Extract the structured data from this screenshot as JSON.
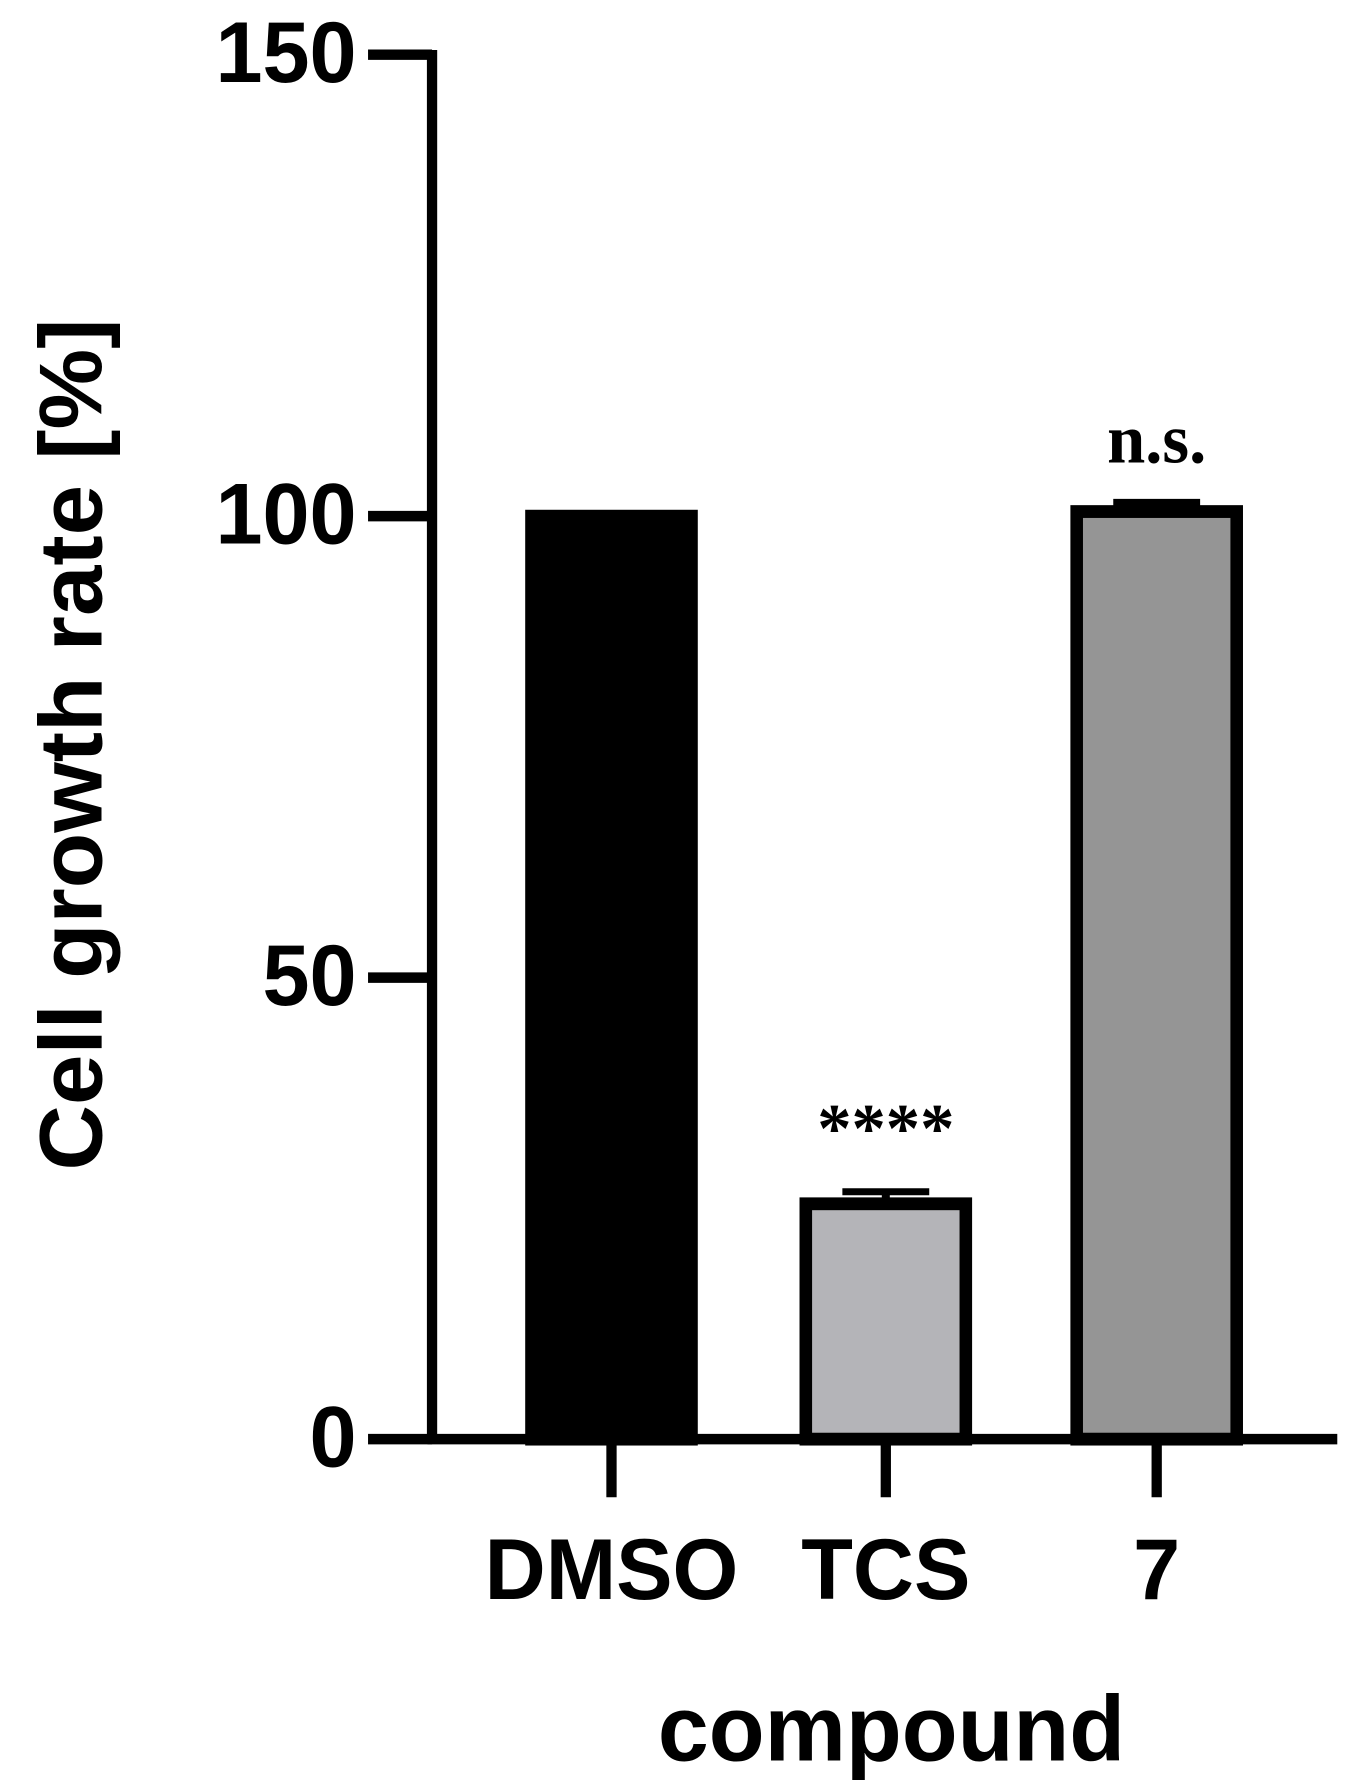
{
  "chart_data": {
    "type": "bar",
    "x_label": "compound",
    "y_label": "Cell growth rate [%]",
    "categories": [
      "DMSO",
      "TCS",
      "7"
    ],
    "values": [
      100,
      25.5,
      100.5
    ],
    "errors": [
      0.2,
      1.3,
      1.0
    ],
    "colors": [
      "#000000",
      "#b4b4b8",
      "#959595"
    ],
    "annotations": [
      {
        "category": "TCS",
        "text": "****"
      },
      {
        "category": "7",
        "text": "n.s."
      }
    ],
    "ylim": [
      0,
      150
    ],
    "yticks": [
      0,
      50,
      100,
      150
    ],
    "grid": false
  }
}
